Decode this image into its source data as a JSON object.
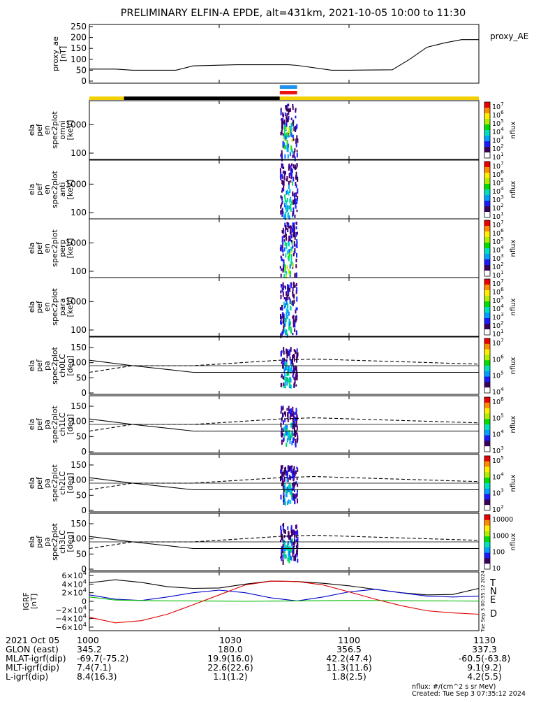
{
  "title": "PRELIMINARY ELFIN-A EPDE, alt=431km, 2021-10-05 10:00 to 11:30",
  "x_time_range": [
    "10:00",
    "11:30"
  ],
  "chart_data": [
    {
      "type": "line",
      "id": "proxy_ae",
      "ylabel": [
        "proxy_ae",
        "[nT]"
      ],
      "legend": "proxy_AE",
      "ylim": [
        0,
        250
      ],
      "yticks": [
        "250",
        "200",
        "150",
        "100",
        "50",
        "0"
      ],
      "x": [
        0,
        6,
        10,
        20,
        24,
        34,
        46,
        48,
        56,
        60,
        70,
        74,
        78,
        82,
        86,
        90
      ],
      "values": [
        55,
        55,
        50,
        50,
        70,
        75,
        75,
        72,
        50,
        50,
        52,
        100,
        155,
        175,
        190,
        190
      ]
    },
    {
      "type": "heatmap",
      "id": "ela_pef_en_spec2plot_omni",
      "ylabel": [
        "ela",
        "pef",
        "en",
        "spec2plot",
        "omni",
        "[keV]"
      ],
      "ylim_keV": [
        60,
        7000
      ],
      "yscale": "log",
      "yticks": [
        "1000",
        "100"
      ],
      "zlabel": "nflux",
      "zticks": [
        "10^7",
        "10^6",
        "10^5",
        "10^4",
        "10^3",
        "10^2",
        "10^1"
      ],
      "active_interval_min": [
        44,
        48
      ]
    },
    {
      "type": "heatmap",
      "id": "ela_pef_en_spec2plot_anti",
      "ylabel": [
        "ela",
        "pef",
        "en",
        "spec2plot",
        "anti",
        "[keV]"
      ],
      "ylim_keV": [
        60,
        7000
      ],
      "yscale": "log",
      "yticks": [
        "1000",
        "100"
      ],
      "zlabel": "nflux",
      "zticks": [
        "10^7",
        "10^6",
        "10^5",
        "10^4",
        "10^3",
        "10^2",
        "10^1"
      ],
      "active_interval_min": [
        44,
        48
      ]
    },
    {
      "type": "heatmap",
      "id": "ela_pef_en_spec2plot_perp",
      "ylabel": [
        "ela",
        "pef",
        "en",
        "spec2plot",
        "perp",
        "[keV]"
      ],
      "ylim_keV": [
        60,
        7000
      ],
      "yscale": "log",
      "yticks": [
        "1000",
        "100"
      ],
      "zlabel": "nflux",
      "zticks": [
        "10^7",
        "10^6",
        "10^5",
        "10^4",
        "10^3",
        "10^2",
        "10^1"
      ],
      "active_interval_min": [
        44,
        48
      ]
    },
    {
      "type": "heatmap",
      "id": "ela_pef_en_spec2plot_para",
      "ylabel": [
        "ela",
        "pef",
        "en",
        "spec2plot",
        "para",
        "[keV]"
      ],
      "ylim_keV": [
        60,
        7000
      ],
      "yscale": "log",
      "yticks": [
        "1000",
        "100"
      ],
      "zlabel": "nflux",
      "zticks": [
        "10^7",
        "10^6",
        "10^5",
        "10^4",
        "10^3",
        "10^2",
        "10^1"
      ],
      "active_interval_min": [
        44,
        48
      ]
    },
    {
      "type": "heatmap",
      "id": "ela_pef_pa_spec2plot_ch0LC",
      "ylabel": [
        "ela",
        "pef",
        "pa",
        "spec2plot",
        "ch0LC",
        "[deg]"
      ],
      "ylim": [
        0,
        180
      ],
      "yticks": [
        "150",
        "100",
        "50",
        "0"
      ],
      "zlabel": "nflux",
      "zticks": [
        "10^7",
        "10^6",
        "10^5",
        "10^4"
      ],
      "lc_solid_x": [
        0,
        10,
        24,
        90
      ],
      "lc_solid": [
        108,
        90,
        68,
        68
      ],
      "lc_dashed_x": [
        0,
        10,
        24,
        44,
        52,
        90
      ],
      "lc_dashed": [
        68,
        90,
        90,
        108,
        112,
        95
      ]
    },
    {
      "type": "heatmap",
      "id": "ela_pef_pa_spec2plot_ch1LC",
      "ylabel": [
        "ela",
        "pef",
        "pa",
        "spec2plot",
        "ch1LC",
        "[deg]"
      ],
      "ylim": [
        0,
        180
      ],
      "yticks": [
        "150",
        "100",
        "50",
        "0"
      ],
      "zlabel": "nflux",
      "zticks": [
        "10^6",
        "10^5",
        "10^4",
        "10^3"
      ],
      "lc_solid_x": [
        0,
        10,
        24,
        90
      ],
      "lc_solid": [
        108,
        90,
        68,
        68
      ],
      "lc_dashed_x": [
        0,
        10,
        24,
        44,
        52,
        90
      ],
      "lc_dashed": [
        68,
        90,
        90,
        108,
        112,
        95
      ]
    },
    {
      "type": "heatmap",
      "id": "ela_pef_pa_spec2plot_ch2LC",
      "ylabel": [
        "ela",
        "pef",
        "pa",
        "spec2plot",
        "ch2LC",
        "[deg]"
      ],
      "ylim": [
        0,
        180
      ],
      "yticks": [
        "150",
        "100",
        "50",
        "0"
      ],
      "zlabel": "nflux",
      "zticks": [
        "10^5",
        "10^4",
        "10^3",
        "10^2"
      ],
      "lc_solid_x": [
        0,
        10,
        24,
        90
      ],
      "lc_solid": [
        108,
        90,
        68,
        68
      ],
      "lc_dashed_x": [
        0,
        10,
        24,
        44,
        52,
        90
      ],
      "lc_dashed": [
        68,
        90,
        90,
        108,
        112,
        95
      ]
    },
    {
      "type": "heatmap",
      "id": "ela_pef_pa_spec2plot_ch3LC",
      "ylabel": [
        "ela",
        "pef",
        "pa",
        "spec2plot",
        "ch3LC",
        "[deg]"
      ],
      "ylim": [
        0,
        180
      ],
      "yticks": [
        "150",
        "100",
        "50",
        "0"
      ],
      "zlabel": "nflux",
      "zticks": [
        "10000",
        "1000",
        "100",
        "10"
      ],
      "lc_solid_x": [
        0,
        10,
        24,
        90
      ],
      "lc_solid": [
        108,
        90,
        68,
        68
      ],
      "lc_dashed_x": [
        0,
        10,
        24,
        44,
        52,
        90
      ],
      "lc_dashed": [
        68,
        90,
        90,
        108,
        112,
        95
      ]
    },
    {
      "type": "line",
      "id": "igrf",
      "ylabel": [
        "IGRF",
        "[nT]"
      ],
      "ylim": [
        -65000,
        65000
      ],
      "yticks": [
        "6×10^4",
        "4×10^4",
        "2×10^4",
        "0",
        "−2×10^4",
        "−4×10^4",
        "−6×10^4"
      ],
      "x": [
        0,
        6,
        12,
        18,
        24,
        30,
        36,
        42,
        48,
        54,
        60,
        66,
        72,
        78,
        84,
        90
      ],
      "series": [
        {
          "name": "T",
          "color": "#000000",
          "values": [
            43000,
            50000,
            44000,
            34000,
            30000,
            31000,
            40000,
            47000,
            46000,
            42000,
            36000,
            28000,
            20000,
            15000,
            16000,
            30000
          ]
        },
        {
          "name": "N",
          "color": "#0000cc",
          "values": [
            15000,
            5000,
            2000,
            10000,
            20000,
            26000,
            20000,
            8000,
            1000,
            10000,
            22000,
            28000,
            20000,
            12000,
            10000,
            12000
          ]
        },
        {
          "name": "E",
          "color": "#00bb00",
          "values": [
            10000,
            3000,
            2000,
            1000,
            1000,
            500,
            0,
            500,
            1000,
            1500,
            2000,
            1800,
            1500,
            1000,
            800,
            500
          ]
        },
        {
          "name": "D",
          "color": "#dd0000",
          "values": [
            -37000,
            -50000,
            -45000,
            -30000,
            -8000,
            15000,
            38000,
            47000,
            46000,
            38000,
            22000,
            5000,
            -10000,
            -22000,
            -27000,
            -30000
          ]
        }
      ]
    }
  ],
  "status_bar": {
    "segments": [
      {
        "from": 0,
        "to": 8,
        "color": "#f5d000"
      },
      {
        "from": 8,
        "to": 44,
        "color": "#000000"
      },
      {
        "from": 44,
        "to": 90,
        "color": "#f5d000"
      }
    ],
    "markers": [
      {
        "from": 44,
        "to": 48,
        "color": "#1f8fef"
      },
      {
        "from": 44,
        "to": 48,
        "color": "#ee1111"
      }
    ]
  },
  "footer": {
    "rows": [
      {
        "label": "2021 Oct 05",
        "values": [
          "1000",
          "1030",
          "1100",
          "1130"
        ]
      },
      {
        "label": "GLON (east)",
        "values": [
          "345.2",
          "180.0",
          "356.5",
          "337.3"
        ]
      },
      {
        "label": "MLAT-igrf(dip)",
        "values": [
          "-69.7(-75.2)",
          "19.9(16.0)",
          "42.2(47.4)",
          "-60.5(-63.8)"
        ]
      },
      {
        "label": "MLT-igrf(dip)",
        "values": [
          "7.4(7.1)",
          "22.6(22.6)",
          "11.3(11.6)",
          "9.1(9.2)"
        ]
      },
      {
        "label": "L-igrf(dip)",
        "values": [
          "8.4(16.3)",
          "1.1(1.2)",
          "1.8(2.5)",
          "4.2(5.5)"
        ]
      }
    ],
    "units_note": "nflux: #/(cm^2 s sr MeV)",
    "created": "Created: Tue Sep  3 07:35:12 2024",
    "side_stamp": "Tue Sep  3 00:35:12 2024"
  }
}
